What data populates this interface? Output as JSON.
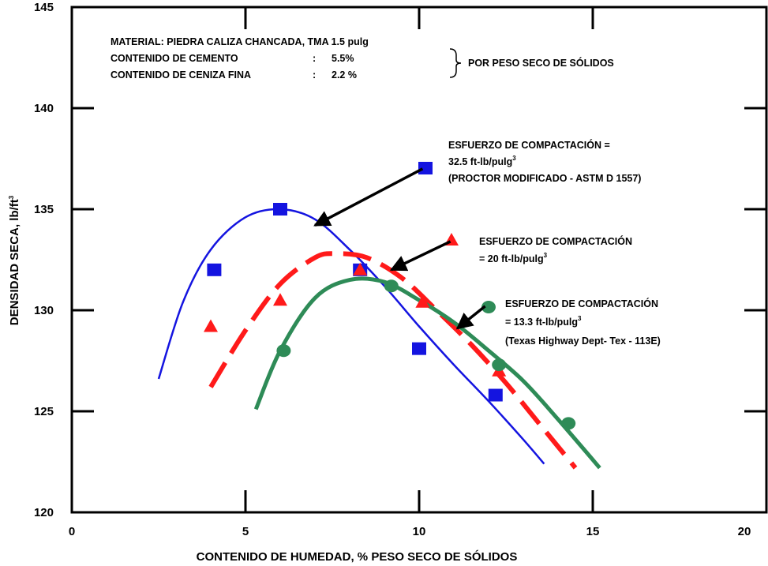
{
  "chart_data": {
    "type": "scatter",
    "xlabel": "CONTENIDO DE HUMEDAD, % PESO SECO DE SÓLIDOS",
    "ylabel": "DENSIDAD SECA, lb/ft",
    "ylabel_sup": "3",
    "xlim": [
      0,
      20
    ],
    "ylim": [
      120,
      145
    ],
    "x_ticks": [
      0,
      5,
      10,
      15,
      20
    ],
    "y_ticks": [
      120,
      125,
      130,
      135,
      140,
      145
    ],
    "x_tick_labels": [
      "0",
      "5",
      "10",
      "15",
      "20"
    ],
    "y_tick_labels": [
      "120",
      "125",
      "130",
      "135",
      "140",
      "145"
    ],
    "material_note": {
      "line1": "MATERIAL: PIEDRA CALIZA CHANCADA, TMA 1.5 pulg",
      "line2_label": "CONTENIDO DE CEMENTO",
      "line2_sep": ":",
      "line2_value": "5.5%",
      "line3_label": "CONTENIDO DE CENIZA FINA",
      "line3_sep": ":",
      "line3_value": "2.2 %",
      "brace_label": "POR PESO SECO DE SÓLIDOS"
    },
    "series": [
      {
        "key": "s1",
        "color": "#1414e0",
        "marker": "square",
        "line_style": "solid",
        "points": [
          [
            4.1,
            132.0
          ],
          [
            6.0,
            135.0
          ],
          [
            8.3,
            132.0
          ],
          [
            10.0,
            128.1
          ],
          [
            12.2,
            125.8
          ]
        ],
        "curve": [
          [
            2.5,
            126.6
          ],
          [
            3.2,
            130.4
          ],
          [
            4.0,
            133.0
          ],
          [
            5.0,
            134.6
          ],
          [
            6.0,
            135.0
          ],
          [
            7.0,
            134.5
          ],
          [
            8.0,
            133.0
          ],
          [
            9.0,
            131.2
          ],
          [
            10.0,
            129.2
          ],
          [
            11.0,
            127.3
          ],
          [
            12.0,
            125.5
          ],
          [
            13.0,
            123.6
          ],
          [
            13.6,
            122.4
          ]
        ],
        "label_line1": "ESFUERZO DE COMPACTACIÓN =",
        "label_line2": "32.5 ft-lb/pulg",
        "label_line2_sup": "3",
        "label_line3": "(PROCTOR MODIFICADO - ASTM D 1557)"
      },
      {
        "key": "s2",
        "color": "#ff1a1a",
        "marker": "triangle",
        "line_style": "dashed",
        "points": [
          [
            4.0,
            129.2
          ],
          [
            6.0,
            130.5
          ],
          [
            8.3,
            132.0
          ],
          [
            10.1,
            130.4
          ],
          [
            12.3,
            127.0
          ]
        ],
        "curve": [
          [
            4.0,
            126.2
          ],
          [
            5.0,
            129.0
          ],
          [
            6.0,
            131.3
          ],
          [
            7.0,
            132.6
          ],
          [
            7.6,
            132.8
          ],
          [
            8.5,
            132.6
          ],
          [
            9.5,
            131.6
          ],
          [
            10.5,
            130.0
          ],
          [
            11.5,
            128.3
          ],
          [
            12.5,
            126.4
          ],
          [
            13.5,
            124.3
          ],
          [
            14.5,
            122.2
          ]
        ],
        "label_line1": "ESFUERZO DE COMPACTACIÓN",
        "label_line2": "= 20 ft-lb/pulg",
        "label_line2_sup": "3",
        "label_line3": ""
      },
      {
        "key": "s3",
        "color": "#2e8b57",
        "marker": "circle",
        "line_style": "solid",
        "points": [
          [
            6.1,
            128.0
          ],
          [
            9.2,
            131.2
          ],
          [
            12.3,
            127.3
          ],
          [
            14.3,
            124.4
          ]
        ],
        "curve": [
          [
            5.3,
            125.1
          ],
          [
            6.0,
            128.0
          ],
          [
            7.0,
            130.6
          ],
          [
            8.0,
            131.5
          ],
          [
            9.0,
            131.4
          ],
          [
            10.0,
            130.5
          ],
          [
            11.0,
            129.4
          ],
          [
            12.0,
            128.0
          ],
          [
            13.0,
            126.5
          ],
          [
            14.0,
            124.6
          ],
          [
            15.2,
            122.2
          ]
        ],
        "label_line1": "ESFUERZO DE COMPACTACIÓN",
        "label_line2": "= 13.3 ft-lb/pulg",
        "label_line2_sup": "3",
        "label_line3": "(Texas Highway Dept- Tex - 113E)"
      }
    ],
    "annotation_arrows": [
      {
        "series": "s1",
        "from": [
          10.1,
          137.0
        ],
        "to": [
          7.0,
          134.2
        ]
      },
      {
        "series": "s2",
        "from": [
          10.9,
          133.4
        ],
        "to": [
          9.2,
          132.0
        ]
      },
      {
        "series": "s3",
        "from": [
          11.9,
          130.2
        ],
        "to": [
          11.1,
          129.1
        ]
      }
    ],
    "grid": false,
    "legend": "none"
  }
}
